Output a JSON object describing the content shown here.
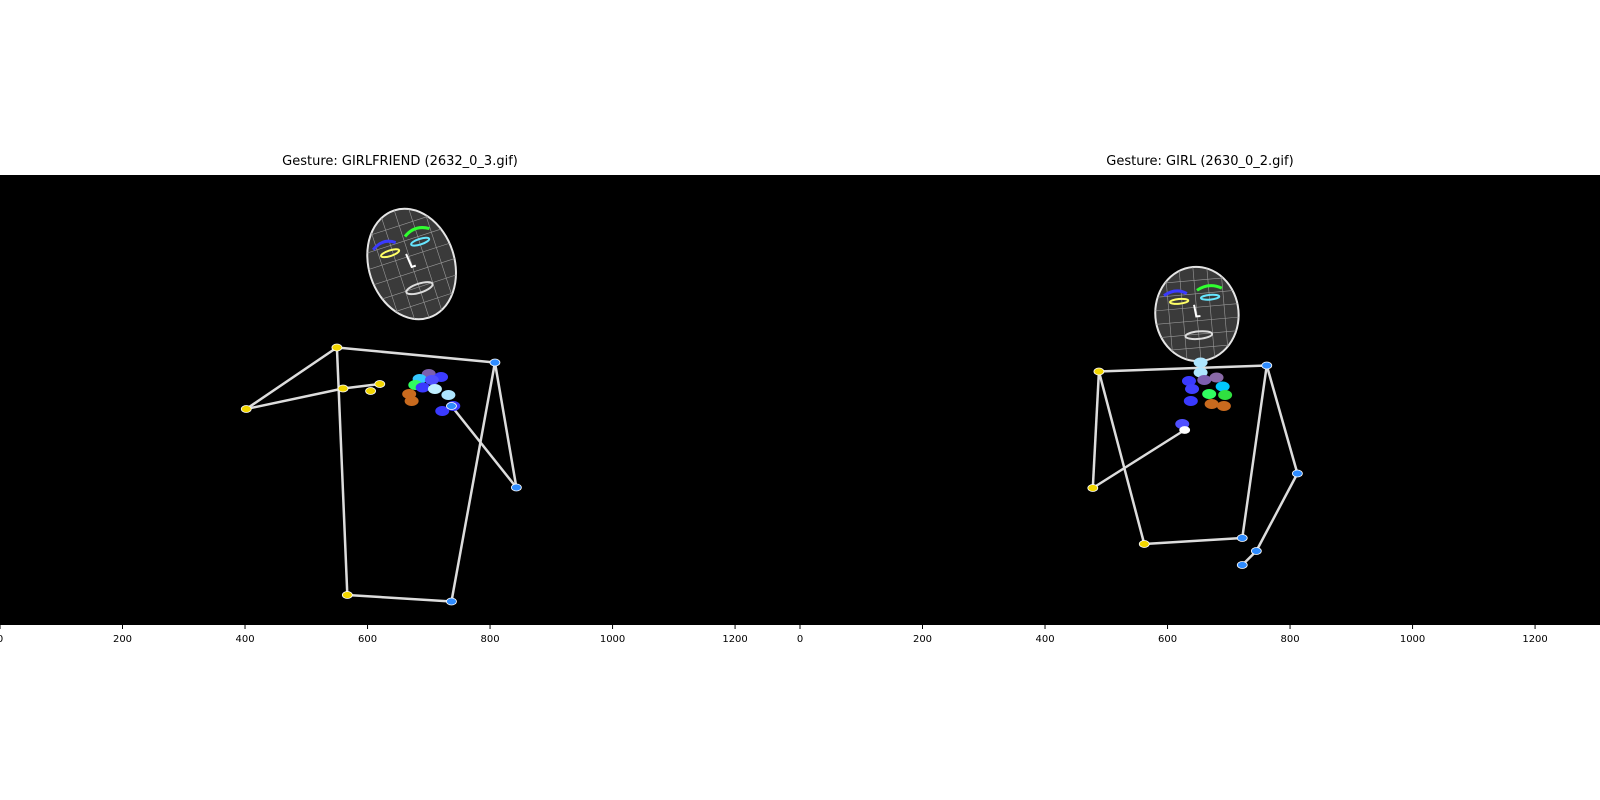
{
  "chart_data": [
    {
      "type": "pose-keypoint-image",
      "title": "Gesture: GIRLFRIEND (2632_0_3.gif)",
      "xticks": [
        0,
        200,
        400,
        600,
        800,
        1000,
        1200
      ],
      "background": "#000000",
      "skeleton_color": "#dddddd",
      "body_keypoints": [
        {
          "x": 550,
          "y": 345,
          "color": "#f2d600"
        },
        {
          "x": 808,
          "y": 375,
          "color": "#2f8cff"
        },
        {
          "x": 402,
          "y": 468,
          "color": "#f2d600"
        },
        {
          "x": 560,
          "y": 427,
          "color": "#f2d600"
        },
        {
          "x": 620,
          "y": 418,
          "color": "#f2d600"
        },
        {
          "x": 605,
          "y": 432,
          "color": "#f2d600"
        },
        {
          "x": 843,
          "y": 625,
          "color": "#2f8cff"
        },
        {
          "x": 737,
          "y": 462,
          "color": "#2f8cff"
        },
        {
          "x": 567,
          "y": 840,
          "color": "#f2d600"
        },
        {
          "x": 737,
          "y": 853,
          "color": "#2f8cff"
        }
      ],
      "skeleton_edges": [
        [
          0,
          1
        ],
        [
          0,
          8
        ],
        [
          1,
          9
        ],
        [
          8,
          9
        ],
        [
          0,
          2
        ],
        [
          2,
          3
        ],
        [
          3,
          4
        ],
        [
          1,
          6
        ],
        [
          6,
          7
        ]
      ],
      "face": {
        "cx": 672,
        "cy": 178,
        "rx": 70,
        "ry": 92,
        "rotation": -18
      },
      "hand_points": [
        {
          "x": 700,
          "y": 398,
          "color": "#7c5fb0"
        },
        {
          "x": 720,
          "y": 404,
          "color": "#3c3cff"
        },
        {
          "x": 685,
          "y": 408,
          "color": "#35c8ff"
        },
        {
          "x": 705,
          "y": 410,
          "color": "#5050ff"
        },
        {
          "x": 678,
          "y": 420,
          "color": "#30ff60"
        },
        {
          "x": 690,
          "y": 425,
          "color": "#3a3aff"
        },
        {
          "x": 710,
          "y": 428,
          "color": "#c0f0ff"
        },
        {
          "x": 732,
          "y": 440,
          "color": "#aee6ff"
        },
        {
          "x": 668,
          "y": 438,
          "color": "#c86a1e"
        },
        {
          "x": 672,
          "y": 452,
          "color": "#c86a1e"
        },
        {
          "x": 740,
          "y": 462,
          "color": "#3a3aff"
        },
        {
          "x": 722,
          "y": 472,
          "color": "#3a3aff"
        }
      ]
    },
    {
      "type": "pose-keypoint-image",
      "title": "Gesture: GIRL (2630_0_2.gif)",
      "xticks": [
        0,
        200,
        400,
        600,
        800,
        1000,
        1200
      ],
      "background": "#000000",
      "skeleton_color": "#dddddd",
      "body_keypoints": [
        {
          "x": 488,
          "y": 393,
          "color": "#f2d600"
        },
        {
          "x": 762,
          "y": 381,
          "color": "#2f8cff"
        },
        {
          "x": 478,
          "y": 626,
          "color": "#f2d600"
        },
        {
          "x": 628,
          "y": 510,
          "color": "#ffffff"
        },
        {
          "x": 812,
          "y": 597,
          "color": "#2f8cff"
        },
        {
          "x": 562,
          "y": 738,
          "color": "#f2d600"
        },
        {
          "x": 722,
          "y": 726,
          "color": "#2f8cff"
        },
        {
          "x": 745,
          "y": 752,
          "color": "#2f8cff"
        },
        {
          "x": 722,
          "y": 780,
          "color": "#2f8cff"
        }
      ],
      "skeleton_edges": [
        [
          0,
          1
        ],
        [
          0,
          2
        ],
        [
          2,
          3
        ],
        [
          0,
          5
        ],
        [
          1,
          4
        ],
        [
          4,
          7
        ],
        [
          7,
          8
        ],
        [
          5,
          6
        ],
        [
          6,
          1
        ]
      ],
      "face": {
        "cx": 648,
        "cy": 278,
        "rx": 68,
        "ry": 77,
        "rotation": -5
      },
      "hand_points": [
        {
          "x": 654,
          "y": 375,
          "color": "#aee6ff"
        },
        {
          "x": 654,
          "y": 395,
          "color": "#aee6ff"
        },
        {
          "x": 635,
          "y": 412,
          "color": "#3a3aff"
        },
        {
          "x": 660,
          "y": 410,
          "color": "#7c5fb0"
        },
        {
          "x": 680,
          "y": 405,
          "color": "#8a6aa8"
        },
        {
          "x": 640,
          "y": 428,
          "color": "#4040ff"
        },
        {
          "x": 690,
          "y": 423,
          "color": "#00c8ff"
        },
        {
          "x": 668,
          "y": 438,
          "color": "#30ff60"
        },
        {
          "x": 694,
          "y": 440,
          "color": "#30e040"
        },
        {
          "x": 638,
          "y": 452,
          "color": "#3a3aff"
        },
        {
          "x": 672,
          "y": 458,
          "color": "#c86a1e"
        },
        {
          "x": 692,
          "y": 462,
          "color": "#c86a1e"
        },
        {
          "x": 624,
          "y": 498,
          "color": "#5050ff"
        }
      ]
    }
  ]
}
